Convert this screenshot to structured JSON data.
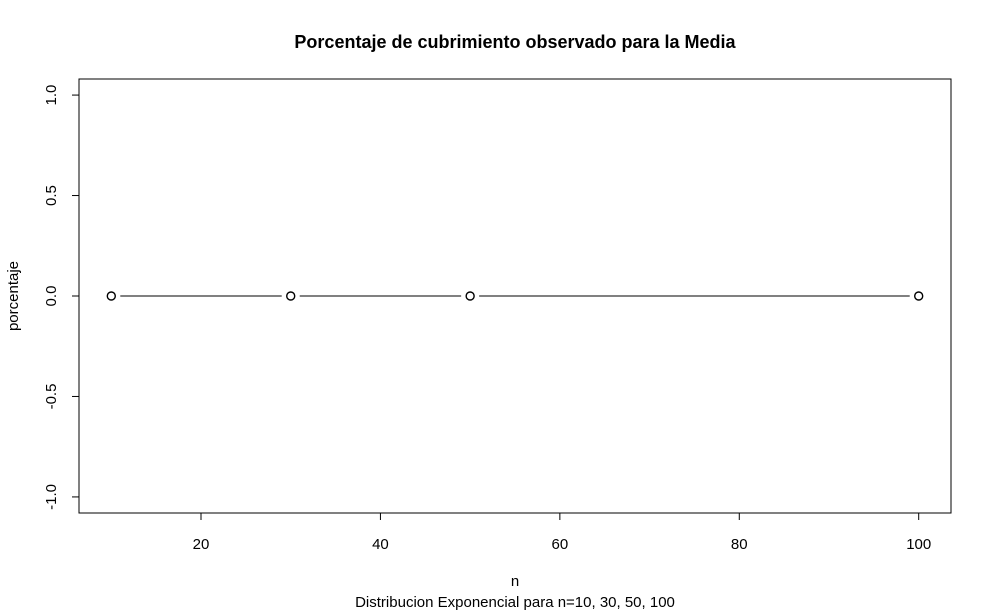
{
  "chart_data": {
    "type": "line",
    "title": "Porcentaje de cubrimiento observado para la Media",
    "xlabel": "n",
    "subtitle": "Distribucion Exponencial para n=10, 30, 50, 100",
    "ylabel": "porcentaje",
    "x": [
      10,
      30,
      50,
      100
    ],
    "series": [
      {
        "values": [
          0,
          0,
          0,
          0
        ]
      }
    ],
    "xlim": [
      6.4,
      103.6
    ],
    "ylim": [
      -1.08,
      1.08
    ],
    "x_ticks": [
      20,
      40,
      60,
      80,
      100
    ],
    "y_ticks": [
      -1.0,
      -0.5,
      0.0,
      0.5,
      1.0
    ],
    "x_tick_labels": [
      "20",
      "40",
      "60",
      "80",
      "100"
    ],
    "y_tick_labels": [
      "-1.0",
      "-0.5",
      "0.0",
      "0.5",
      "1.0"
    ],
    "markers": "open-circle",
    "line_type": "both",
    "grid": false,
    "legend": "none",
    "colors": {
      "line": "#000000",
      "point_fill": "#ffffff",
      "background": "#ffffff"
    }
  }
}
